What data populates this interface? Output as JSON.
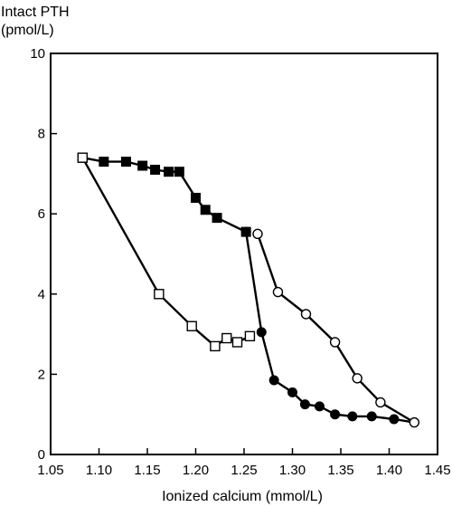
{
  "chart_data": {
    "type": "line",
    "ylabel_line1": "Intact PTH",
    "ylabel_line2": "(pmol/L)",
    "xlabel": "Ionized calcium (mmol/L)",
    "xlim": [
      1.05,
      1.45
    ],
    "ylim": [
      0,
      10
    ],
    "xticks": [
      "1.05",
      "1.10",
      "1.15",
      "1.20",
      "1.25",
      "1.30",
      "1.35",
      "1.40",
      "1.45"
    ],
    "yticks": [
      "0",
      "2",
      "4",
      "6",
      "8",
      "10"
    ],
    "grid": false,
    "legend": "none",
    "series": [
      {
        "marker": "filled-square",
        "x": [
          1.083,
          1.105,
          1.128,
          1.145,
          1.158,
          1.172,
          1.183,
          1.2,
          1.21,
          1.222,
          1.252
        ],
        "y": [
          7.4,
          7.3,
          7.3,
          7.2,
          7.1,
          7.05,
          7.05,
          6.4,
          6.1,
          5.9,
          5.55
        ]
      },
      {
        "marker": "open-square",
        "x": [
          1.083,
          1.162,
          1.196,
          1.22,
          1.232,
          1.243,
          1.256
        ],
        "y": [
          7.4,
          4.0,
          3.2,
          2.7,
          2.9,
          2.8,
          2.95
        ]
      },
      {
        "marker": "filled-circle",
        "x": [
          1.252,
          1.268,
          1.281,
          1.3,
          1.313,
          1.328,
          1.344,
          1.362,
          1.382,
          1.405,
          1.426
        ],
        "y": [
          5.55,
          3.05,
          1.85,
          1.55,
          1.25,
          1.2,
          1.0,
          0.95,
          0.95,
          0.88,
          0.8
        ]
      },
      {
        "marker": "open-circle",
        "x": [
          1.264,
          1.285,
          1.314,
          1.344,
          1.367,
          1.391,
          1.426
        ],
        "y": [
          5.5,
          4.05,
          3.5,
          2.8,
          1.9,
          1.3,
          0.8
        ]
      }
    ]
  }
}
